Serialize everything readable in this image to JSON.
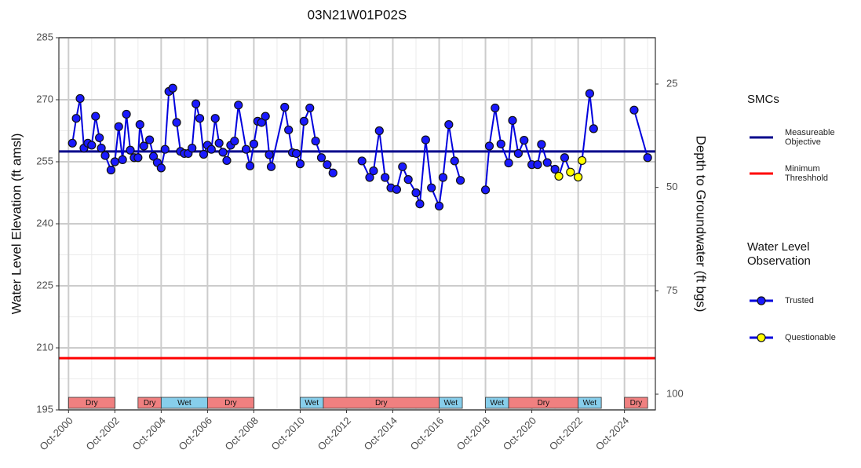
{
  "chart_data": {
    "type": "line",
    "title": "03N21W01P02S",
    "y_label": "Water Level Elevation (ft amsl)",
    "y2_label": "Depth to Groundwater (ft bgs)",
    "xlim": [
      "2000-05",
      "2026-02"
    ],
    "xticks": [
      {
        "value": "2000-10",
        "label": "Oct-2000"
      },
      {
        "value": "2002-10",
        "label": "Oct-2002"
      },
      {
        "value": "2004-10",
        "label": "Oct-2004"
      },
      {
        "value": "2006-10",
        "label": "Oct-2006"
      },
      {
        "value": "2008-10",
        "label": "Oct-2008"
      },
      {
        "value": "2010-10",
        "label": "Oct-2010"
      },
      {
        "value": "2012-10",
        "label": "Oct-2012"
      },
      {
        "value": "2014-10",
        "label": "Oct-2014"
      },
      {
        "value": "2016-10",
        "label": "Oct-2016"
      },
      {
        "value": "2018-10",
        "label": "Oct-2018"
      },
      {
        "value": "2020-10",
        "label": "Oct-2020"
      },
      {
        "value": "2022-10",
        "label": "Oct-2022"
      },
      {
        "value": "2024-10",
        "label": "Oct-2024"
      }
    ],
    "ylim": [
      195,
      285
    ],
    "yticks": [
      195,
      210,
      225,
      240,
      255,
      270,
      285
    ],
    "y2lim": [
      103.8,
      13.8
    ],
    "y2ticks": [
      25,
      50,
      75,
      100
    ],
    "grid": true,
    "line_color": "#0000dd",
    "x": [
      "2000-12",
      "2001-02",
      "2001-04",
      "2001-06",
      "2001-08",
      "2001-10",
      "2001-12",
      "2002-02",
      "2002-03",
      "2002-05",
      "2002-08",
      "2002-10",
      "2002-12",
      "2003-02",
      "2003-04",
      "2003-06",
      "2003-08",
      "2003-10",
      "2003-11",
      "2004-01",
      "2004-04",
      "2004-06",
      "2004-08",
      "2004-10",
      "2004-12",
      "2005-02",
      "2005-04",
      "2005-06",
      "2005-08",
      "2005-10",
      "2005-12",
      "2006-02",
      "2006-04",
      "2006-06",
      "2006-08",
      "2006-10",
      "2006-12",
      "2007-02",
      "2007-04",
      "2007-06",
      "2007-08",
      "2007-10",
      "2007-12",
      "2008-02",
      "2008-06",
      "2008-08",
      "2008-10",
      "2008-12",
      "2009-02",
      "2009-04",
      "2009-06",
      "2009-07",
      "2010-02",
      "2010-04",
      "2010-06",
      "2010-08",
      "2010-10",
      "2010-12",
      "2011-03",
      "2011-06",
      "2011-09",
      "2011-12",
      "2012-03",
      null,
      "2013-06",
      "2013-10",
      "2013-12",
      "2014-03",
      "2014-06",
      "2014-09",
      "2014-12",
      "2015-03",
      "2015-06",
      "2015-10",
      "2015-12",
      "2016-03",
      "2016-06",
      "2016-10",
      "2016-12",
      "2017-03",
      "2017-06",
      "2017-09",
      null,
      "2018-10",
      "2018-12",
      "2019-03",
      "2019-06",
      "2019-10",
      "2019-12",
      "2020-03",
      "2020-06",
      "2020-10",
      "2021-01",
      "2021-03",
      "2021-06",
      "2021-10",
      "2021-12",
      "2022-03",
      "2022-06",
      "2022-10",
      "2022-12",
      "2023-04",
      "2023-06",
      null,
      "2025-03",
      "2025-10"
    ],
    "values": [
      259.5,
      265.5,
      270.3,
      258.3,
      259.5,
      259,
      266,
      260.8,
      258.3,
      256.5,
      253,
      255,
      263.5,
      255.5,
      266.5,
      257.8,
      256,
      256,
      264,
      258.8,
      260.3,
      256.3,
      254.8,
      253.5,
      258,
      272,
      272.8,
      264.5,
      257.5,
      257,
      257,
      258.3,
      269,
      265.5,
      256.8,
      259,
      258,
      265.5,
      259.5,
      257.3,
      255.3,
      259,
      260,
      268.7,
      258,
      254,
      259.3,
      264.8,
      264.5,
      266,
      256.7,
      253.8,
      268.2,
      262.7,
      257.2,
      257,
      254.5,
      264.8,
      268,
      260,
      256,
      254.3,
      252.3,
      null,
      255.2,
      251.2,
      252.8,
      262.5,
      251.2,
      248.7,
      248.3,
      253.8,
      250.7,
      247.5,
      244.8,
      260.3,
      248.7,
      244.3,
      251.2,
      264,
      255.2,
      250.5,
      null,
      248.2,
      258.8,
      268,
      259.3,
      254.7,
      265,
      257,
      260.2,
      254.3,
      254.3,
      259.2,
      254.8,
      253.2,
      251.5,
      256,
      252.5,
      251.3,
      255.3,
      271.5,
      263,
      null,
      267.5,
      256
    ],
    "observation_type": [
      0,
      0,
      0,
      0,
      0,
      0,
      0,
      0,
      0,
      0,
      0,
      0,
      0,
      0,
      0,
      0,
      0,
      0,
      0,
      0,
      0,
      0,
      0,
      0,
      0,
      0,
      0,
      0,
      0,
      0,
      0,
      0,
      0,
      0,
      0,
      0,
      0,
      0,
      0,
      0,
      0,
      0,
      0,
      0,
      0,
      0,
      0,
      0,
      0,
      0,
      0,
      0,
      0,
      0,
      0,
      0,
      0,
      0,
      0,
      0,
      0,
      0,
      0,
      null,
      0,
      0,
      0,
      0,
      0,
      0,
      0,
      0,
      0,
      0,
      0,
      0,
      0,
      0,
      0,
      0,
      0,
      0,
      null,
      0,
      0,
      0,
      0,
      0,
      0,
      0,
      0,
      0,
      0,
      0,
      0,
      0,
      1,
      0,
      1,
      1,
      1,
      0,
      0,
      null,
      0,
      0
    ],
    "legend_smc_title": "SMCs",
    "hlines": [
      {
        "name": "Measureable Objective",
        "value": 257.5,
        "color": "#00008b"
      },
      {
        "name": "Minimum Threshhold",
        "value": 207.5,
        "color": "#ff0000"
      }
    ],
    "legend_obs_title": "Water Level Observation",
    "observation_types": [
      {
        "name": "Trusted",
        "color": "#1a1aff"
      },
      {
        "name": "Questionable",
        "color": "#ffff00"
      }
    ],
    "seasons": [
      {
        "label": "Dry",
        "start": "2000-10",
        "end": "2002-10",
        "color": "#f08080"
      },
      {
        "label": "Dry",
        "start": "2003-10",
        "end": "2004-10",
        "color": "#f08080"
      },
      {
        "label": "Wet",
        "start": "2004-10",
        "end": "2006-10",
        "color": "#87ceeb"
      },
      {
        "label": "Dry",
        "start": "2006-10",
        "end": "2008-10",
        "color": "#f08080"
      },
      {
        "label": "Wet",
        "start": "2010-10",
        "end": "2011-10",
        "color": "#87ceeb"
      },
      {
        "label": "Dry",
        "start": "2011-10",
        "end": "2016-10",
        "color": "#f08080"
      },
      {
        "label": "Wet",
        "start": "2016-10",
        "end": "2017-10",
        "color": "#87ceeb"
      },
      {
        "label": "Wet",
        "start": "2018-10",
        "end": "2019-10",
        "color": "#87ceeb"
      },
      {
        "label": "Dry",
        "start": "2019-10",
        "end": "2022-10",
        "color": "#f08080"
      },
      {
        "label": "Wet",
        "start": "2022-10",
        "end": "2023-10",
        "color": "#87ceeb"
      },
      {
        "label": "Dry",
        "start": "2024-10",
        "end": "2025-10",
        "color": "#f08080"
      }
    ]
  }
}
